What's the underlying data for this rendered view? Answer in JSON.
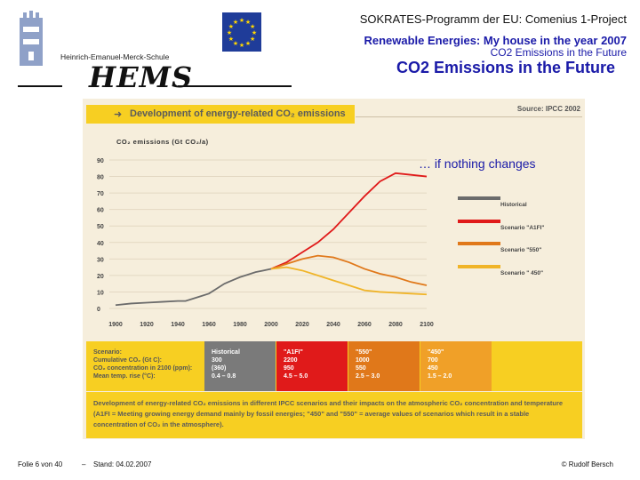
{
  "header": {
    "program": "SOKRATES-Programm der EU: Comenius 1-Project",
    "project": "Renewable Energies: My house in the year 2007",
    "subtitle": "CO2 Emissions in the Future",
    "slide_title": "CO2 Emissions in the Future"
  },
  "school": {
    "name": "Heinrich-Emanuel-Merck-Schule",
    "logo_text": "HEMS"
  },
  "chart_panel": {
    "title": "Development of energy-related CO₂ emissions",
    "source": "Source: IPCC 2002",
    "ytitle": "CO₂ emissions (Gt CO₂/a)",
    "note": "… if nothing changes"
  },
  "chart_data": {
    "type": "line",
    "title": "Development of energy-related CO₂ emissions",
    "ylabel": "CO₂ emissions (Gt CO₂/a)",
    "xlim": [
      1900,
      2100
    ],
    "ylim": [
      0,
      90
    ],
    "xticks": [
      "1900",
      "1920",
      "1940",
      "1960",
      "1980",
      "2000",
      "2020",
      "2040",
      "2060",
      "2080",
      "2100"
    ],
    "yticks": [
      "0",
      "10",
      "20",
      "30",
      "40",
      "50",
      "60",
      "70",
      "80",
      "90"
    ],
    "grid": true,
    "legend_position": "right",
    "series": [
      {
        "name": "Historical",
        "color": "#6b6b6b",
        "x": [
          1900,
          1910,
          1920,
          1930,
          1940,
          1945,
          1950,
          1955,
          1960,
          1965,
          1970,
          1975,
          1980,
          1985,
          1990,
          1995,
          2000
        ],
        "y": [
          2,
          3,
          3.5,
          4,
          4.5,
          4.5,
          6,
          7.5,
          9,
          12,
          15,
          17,
          19,
          20.5,
          22,
          23,
          24
        ]
      },
      {
        "name": "Scenario \"A1FI\"",
        "color": "#e01a1a",
        "x": [
          2000,
          2010,
          2020,
          2030,
          2040,
          2050,
          2060,
          2070,
          2080,
          2090,
          2100
        ],
        "y": [
          24,
          28,
          34,
          40,
          48,
          58,
          68,
          77,
          82,
          81,
          80
        ]
      },
      {
        "name": "Scenario \"550\"",
        "color": "#e0781a",
        "x": [
          2000,
          2010,
          2020,
          2030,
          2040,
          2050,
          2060,
          2070,
          2080,
          2090,
          2100
        ],
        "y": [
          24,
          27,
          30,
          32,
          31,
          28,
          24,
          21,
          19,
          16,
          14
        ]
      },
      {
        "name": "Scenario \" 450\"",
        "color": "#f0b428",
        "x": [
          2000,
          2010,
          2020,
          2030,
          2040,
          2050,
          2060,
          2070,
          2080,
          2090,
          2100
        ],
        "y": [
          24,
          25,
          23,
          20,
          17,
          14,
          11,
          10,
          9.5,
          9,
          8.5
        ]
      }
    ]
  },
  "table": {
    "row_labels": [
      "Scenario:",
      "Cumulative CO₂ (Gt C):",
      "CO₂ concentration in 2100 (ppm):",
      "Mean temp. rise (°C):"
    ],
    "columns": [
      {
        "head": "Historical",
        "bg": "#7a7a7a",
        "fg": "#ffffff",
        "values": [
          "300",
          "(360)",
          "0.4 – 0.8"
        ]
      },
      {
        "head": "\"A1FI\"",
        "bg": "#e01a1a",
        "fg": "#ffffff",
        "values": [
          "2200",
          "950",
          "4.5 – 5.0"
        ]
      },
      {
        "head": "\"550\"",
        "bg": "#e0781a",
        "fg": "#ffffff",
        "values": [
          "1000",
          "550",
          "2.5 – 3.0"
        ]
      },
      {
        "head": "\"450\"",
        "bg": "#f0a028",
        "fg": "#ffffff",
        "values": [
          "700",
          "450",
          "1.5 – 2.0"
        ]
      }
    ]
  },
  "caption": "Development of energy-related CO₂ emissions in different IPCC scenarios and their impacts on the atmospheric CO₂ concentration and temperature (A1FI = Meeting growing energy demand mainly by fossil energies; \"450\" and \"550\" = average values of scenarios which result in a stable concentration of CO₂ in the atmosphere).",
  "footer": {
    "page": "Folie 6 von 40",
    "dash": "–",
    "date": "Stand: 04.02.2007",
    "author": "© Rudolf Bersch"
  }
}
